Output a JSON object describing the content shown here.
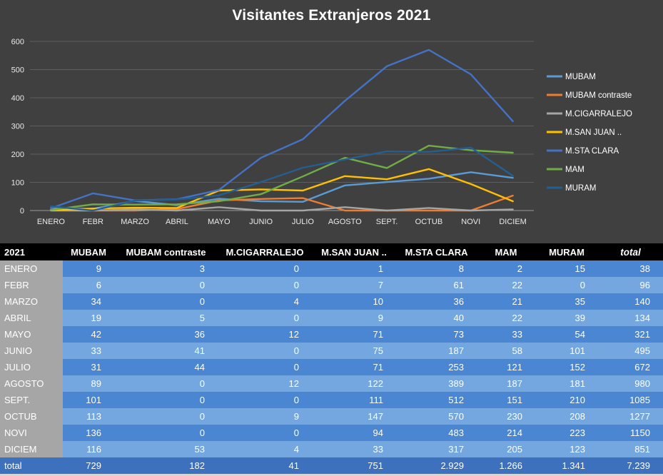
{
  "chart_data": {
    "type": "line",
    "title": "Visitantes Extranjeros 2021",
    "x": [
      "ENERO",
      "FEBR",
      "MARZO",
      "ABRIL",
      "MAYO",
      "JUNIO",
      "JULIO",
      "AGOSTO",
      "SEPT.",
      "OCTUB",
      "NOVI",
      "DICIEM"
    ],
    "series": [
      {
        "name": "MUBAM",
        "color": "#5B9BD5",
        "values": [
          9,
          6,
          34,
          19,
          42,
          33,
          31,
          89,
          101,
          113,
          136,
          116
        ]
      },
      {
        "name": "MUBAM contraste",
        "color": "#ED7D31",
        "values": [
          3,
          0,
          0,
          5,
          36,
          41,
          44,
          0,
          0,
          0,
          0,
          53
        ]
      },
      {
        "name": "M.CIGARRALEJO",
        "color": "#A5A5A5",
        "values": [
          0,
          0,
          4,
          0,
          12,
          0,
          0,
          12,
          0,
          9,
          0,
          4
        ]
      },
      {
        "name": "M.SAN JUAN ..",
        "color": "#FFC000",
        "values": [
          1,
          7,
          10,
          9,
          71,
          75,
          71,
          122,
          111,
          147,
          94,
          33
        ]
      },
      {
        "name": "M.STA CLARA",
        "color": "#4472C4",
        "values": [
          8,
          61,
          36,
          40,
          73,
          187,
          253,
          389,
          512,
          570,
          483,
          317
        ]
      },
      {
        "name": "MAM",
        "color": "#70AD47",
        "values": [
          2,
          22,
          21,
          22,
          33,
          58,
          121,
          187,
          151,
          230,
          214,
          205
        ]
      },
      {
        "name": "MURAM",
        "color": "#255E91",
        "values": [
          15,
          0,
          35,
          39,
          54,
          101,
          152,
          181,
          210,
          208,
          223,
          123
        ]
      }
    ],
    "ylim": [
      0,
      600
    ],
    "ytick_step": 100,
    "grid": true,
    "legend_position": "right"
  },
  "table": {
    "header": [
      "2021",
      "MUBAM",
      "MUBAM contraste",
      "M.CIGARRALEJO",
      "M.SAN JUAN ..",
      "M.STA CLARA",
      "MAM",
      "MURAM",
      "total"
    ],
    "rows": [
      [
        "ENERO",
        "9",
        "3",
        "0",
        "1",
        "8",
        "2",
        "15",
        "38"
      ],
      [
        "FEBR",
        "6",
        "0",
        "0",
        "7",
        "61",
        "22",
        "0",
        "96"
      ],
      [
        "MARZO",
        "34",
        "0",
        "4",
        "10",
        "36",
        "21",
        "35",
        "140"
      ],
      [
        "ABRIL",
        "19",
        "5",
        "0",
        "9",
        "40",
        "22",
        "39",
        "134"
      ],
      [
        "MAYO",
        "42",
        "36",
        "12",
        "71",
        "73",
        "33",
        "54",
        "321"
      ],
      [
        "JUNIO",
        "33",
        "41",
        "0",
        "75",
        "187",
        "58",
        "101",
        "495"
      ],
      [
        "JULIO",
        "31",
        "44",
        "0",
        "71",
        "253",
        "121",
        "152",
        "672"
      ],
      [
        "AGOSTO",
        "89",
        "0",
        "12",
        "122",
        "389",
        "187",
        "181",
        "980"
      ],
      [
        "SEPT.",
        "101",
        "0",
        "0",
        "111",
        "512",
        "151",
        "210",
        "1085"
      ],
      [
        "OCTUB",
        "113",
        "0",
        "9",
        "147",
        "570",
        "230",
        "208",
        "1277"
      ],
      [
        "NOVI",
        "136",
        "0",
        "0",
        "94",
        "483",
        "214",
        "223",
        "1150"
      ],
      [
        "DICIEM",
        "116",
        "53",
        "4",
        "33",
        "317",
        "205",
        "123",
        "851"
      ],
      [
        "total",
        "729",
        "182",
        "41",
        "751",
        "2.929",
        "1.266",
        "1.341",
        "7.239"
      ]
    ]
  },
  "colors": {
    "background": "#404040",
    "table_header_bg": "#000000",
    "row_band_dark": "#4A86D2",
    "row_band_light": "#74A7E0",
    "total_row_bg": "#3D71BE",
    "rowhead_bg": "#A6A6A6",
    "gridline": "#5E5E5E",
    "axis_line": "#9A9A9A",
    "axis_text": "#EAEAEA",
    "text": "#FFFFFF"
  }
}
